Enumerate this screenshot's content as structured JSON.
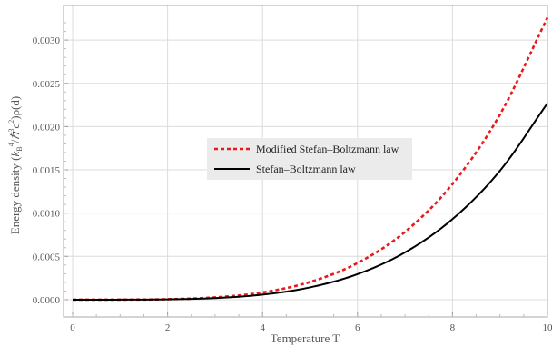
{
  "chart_data": {
    "type": "line",
    "xlabel": "Temperature T",
    "ylabel": "Energy density (k_B^4/ℏ^3c^2)ρ(d)",
    "ylabel_parts": {
      "pre": "Energy density (",
      "k": "k",
      "k_sub": "B",
      "k_sup": "4",
      "slash": "/",
      "hbar": "ℏ",
      "hbar_sup": "3",
      "c": "c",
      "c_sup": "2",
      "post": ")ρ(d)"
    },
    "xlim": [
      0,
      10
    ],
    "ylim": [
      -0.0002,
      0.0034
    ],
    "xticks": [
      "0",
      "2",
      "4",
      "6",
      "8",
      "10"
    ],
    "yticks": [
      "0.0000",
      "0.0005",
      "0.0010",
      "0.0015",
      "0.0020",
      "0.0025",
      "0.0030"
    ],
    "grid": true,
    "legend_position": "center",
    "series": [
      {
        "name": "Modified Stefan–Boltzmann law",
        "color": "#e8191b",
        "style": "dashed",
        "x": [
          0,
          1,
          2,
          3,
          4,
          5,
          6,
          7,
          8,
          9,
          10
        ],
        "y": [
          0,
          3e-07,
          5.2e-06,
          2.64e-05,
          8.35e-05,
          0.000204,
          0.000423,
          0.000783,
          0.001336,
          0.00214,
          0.00326
        ]
      },
      {
        "name": "Stefan–Boltzmann law",
        "color": "#000000",
        "style": "solid",
        "x": [
          0,
          1,
          2,
          3,
          4,
          5,
          6,
          7,
          8,
          9,
          10
        ],
        "y": [
          0,
          2e-07,
          3.6e-06,
          1.84e-05,
          5.82e-05,
          0.000142,
          0.000295,
          0.000546,
          0.000931,
          0.00149,
          0.00227
        ]
      }
    ]
  }
}
